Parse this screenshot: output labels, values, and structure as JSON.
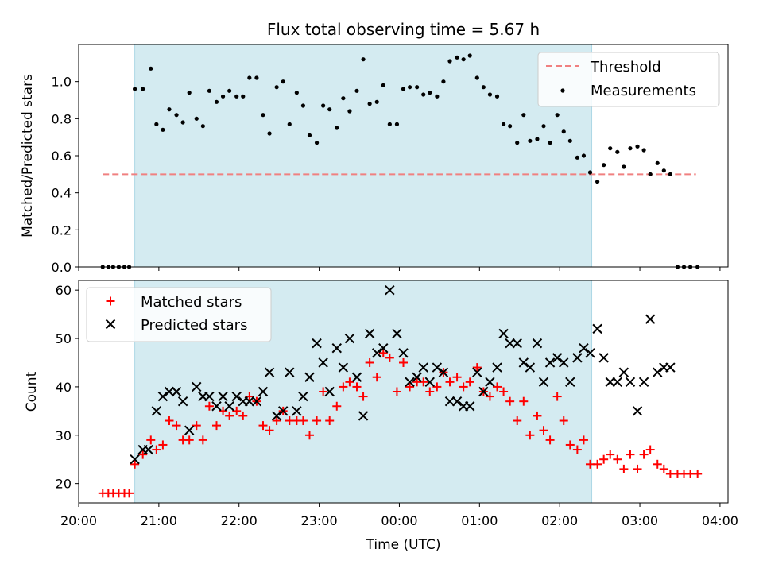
{
  "chart_data": [
    {
      "type": "scatter",
      "title": "Flux total observing time = 5.67 h",
      "xlabel": "",
      "ylabel": "Matched/Predicted stars",
      "xlim_hours": [
        20.0,
        28.1
      ],
      "ylim": [
        0.0,
        1.2
      ],
      "yticks": [
        0.0,
        0.2,
        0.4,
        0.6,
        0.8,
        1.0
      ],
      "yticklabels": [
        "0.0",
        "0.2",
        "0.4",
        "0.6",
        "0.8",
        "1.0"
      ],
      "shaded_region_hours": [
        20.7,
        26.4
      ],
      "shade_color": "#d4ebf1",
      "legend_position": "top-right",
      "threshold": {
        "name": "Threshold",
        "value": 0.5,
        "x_range_hours": [
          20.3,
          27.7
        ],
        "color": "#f08080"
      },
      "series": [
        {
          "name": "Measurements",
          "marker": "dot",
          "color": "#000000",
          "x": [
            20.3,
            20.37,
            20.43,
            20.5,
            20.57,
            20.63,
            20.7,
            20.8,
            20.9,
            20.97,
            21.05,
            21.13,
            21.22,
            21.3,
            21.38,
            21.47,
            21.55,
            21.63,
            21.72,
            21.8,
            21.88,
            21.97,
            22.05,
            22.13,
            22.22,
            22.3,
            22.38,
            22.47,
            22.55,
            22.63,
            22.72,
            22.8,
            22.88,
            22.97,
            23.05,
            23.13,
            23.22,
            23.3,
            23.38,
            23.47,
            23.55,
            23.63,
            23.72,
            23.8,
            23.88,
            23.97,
            24.05,
            24.13,
            24.22,
            24.3,
            24.38,
            24.47,
            24.55,
            24.63,
            24.72,
            24.8,
            24.88,
            24.97,
            25.05,
            25.13,
            25.22,
            25.3,
            25.38,
            25.47,
            25.55,
            25.63,
            25.72,
            25.8,
            25.88,
            25.97,
            26.05,
            26.13,
            26.22,
            26.3,
            26.38,
            26.47,
            26.55,
            26.63,
            26.72,
            26.8,
            26.88,
            26.97,
            27.05,
            27.13,
            27.22,
            27.3,
            27.38,
            27.47,
            27.55,
            27.63,
            27.72
          ],
          "y": [
            0.0,
            0.0,
            0.0,
            0.0,
            0.0,
            0.0,
            0.96,
            0.96,
            1.07,
            0.77,
            0.74,
            0.85,
            0.82,
            0.78,
            0.94,
            0.8,
            0.76,
            0.95,
            0.89,
            0.92,
            0.95,
            0.92,
            0.92,
            1.02,
            1.02,
            0.82,
            0.72,
            0.97,
            1.0,
            0.77,
            0.94,
            0.87,
            0.71,
            0.67,
            0.87,
            0.85,
            0.75,
            0.91,
            0.84,
            0.95,
            1.12,
            0.88,
            0.89,
            0.98,
            0.77,
            0.77,
            0.96,
            0.97,
            0.97,
            0.93,
            0.94,
            0.92,
            1.0,
            1.11,
            1.13,
            1.12,
            1.14,
            1.02,
            0.97,
            0.93,
            0.92,
            0.77,
            0.76,
            0.67,
            0.82,
            0.68,
            0.69,
            0.76,
            0.67,
            0.82,
            0.73,
            0.68,
            0.59,
            0.6,
            0.51,
            0.46,
            0.55,
            0.64,
            0.62,
            0.54,
            0.64,
            0.65,
            0.63,
            0.5,
            0.56,
            0.52,
            0.5,
            0.0,
            0.0,
            0.0,
            0.0
          ]
        }
      ]
    },
    {
      "type": "scatter",
      "title": "",
      "xlabel": "Time (UTC)",
      "ylabel": "Count",
      "xlim_hours": [
        20.0,
        28.1
      ],
      "ylim": [
        16,
        62
      ],
      "yticks": [
        20,
        30,
        40,
        50,
        60
      ],
      "yticklabels": [
        "20",
        "30",
        "40",
        "50",
        "60"
      ],
      "xticks_hours": [
        20,
        21,
        22,
        23,
        24,
        25,
        26,
        27,
        28
      ],
      "xticklabels": [
        "20:00",
        "21:00",
        "22:00",
        "23:00",
        "00:00",
        "01:00",
        "02:00",
        "03:00",
        "04:00"
      ],
      "shaded_region_hours": [
        20.7,
        26.4
      ],
      "shade_color": "#d4ebf1",
      "legend_position": "top-left",
      "series": [
        {
          "name": "Matched stars",
          "marker": "plus",
          "color": "#ff0000",
          "x": [
            20.3,
            20.37,
            20.43,
            20.5,
            20.57,
            20.63,
            20.7,
            20.8,
            20.9,
            20.97,
            21.05,
            21.13,
            21.22,
            21.3,
            21.38,
            21.47,
            21.55,
            21.63,
            21.72,
            21.8,
            21.88,
            21.97,
            22.05,
            22.13,
            22.22,
            22.3,
            22.38,
            22.47,
            22.55,
            22.63,
            22.72,
            22.8,
            22.88,
            22.97,
            23.05,
            23.13,
            23.22,
            23.3,
            23.38,
            23.47,
            23.55,
            23.63,
            23.72,
            23.8,
            23.88,
            23.97,
            24.05,
            24.13,
            24.22,
            24.3,
            24.38,
            24.47,
            24.55,
            24.63,
            24.72,
            24.8,
            24.88,
            24.97,
            25.05,
            25.13,
            25.22,
            25.3,
            25.38,
            25.47,
            25.55,
            25.63,
            25.72,
            25.8,
            25.88,
            25.97,
            26.05,
            26.13,
            26.22,
            26.3,
            26.38,
            26.47,
            26.55,
            26.63,
            26.72,
            26.8,
            26.88,
            26.97,
            27.05,
            27.13,
            27.22,
            27.3,
            27.38,
            27.47,
            27.55,
            27.63,
            27.72
          ],
          "y": [
            18,
            18,
            18,
            18,
            18,
            18,
            24,
            26,
            29,
            27,
            28,
            33,
            32,
            29,
            29,
            32,
            29,
            36,
            32,
            35,
            34,
            35,
            34,
            38,
            37,
            32,
            31,
            33,
            35,
            33,
            33,
            33,
            30,
            33,
            39,
            33,
            36,
            40,
            41,
            40,
            38,
            45,
            42,
            47,
            46,
            39,
            45,
            40,
            41,
            41,
            39,
            40,
            43,
            41,
            42,
            40,
            41,
            44,
            39,
            38,
            40,
            39,
            37,
            33,
            37,
            30,
            34,
            31,
            29,
            38,
            33,
            28,
            27,
            29,
            24,
            24,
            25,
            26,
            25,
            23,
            26,
            23,
            26,
            27,
            24,
            23,
            22,
            22,
            22,
            22,
            22
          ]
        },
        {
          "name": "Predicted stars",
          "marker": "x",
          "color": "#000000",
          "x": [
            20.7,
            20.8,
            20.87,
            20.97,
            21.05,
            21.13,
            21.22,
            21.3,
            21.38,
            21.47,
            21.55,
            21.63,
            21.72,
            21.8,
            21.88,
            21.97,
            22.05,
            22.13,
            22.22,
            22.3,
            22.38,
            22.47,
            22.55,
            22.63,
            22.72,
            22.8,
            22.88,
            22.97,
            23.05,
            23.13,
            23.22,
            23.3,
            23.38,
            23.47,
            23.55,
            23.63,
            23.72,
            23.8,
            23.88,
            23.97,
            24.05,
            24.13,
            24.22,
            24.3,
            24.38,
            24.47,
            24.55,
            24.63,
            24.72,
            24.8,
            24.88,
            24.97,
            25.05,
            25.13,
            25.22,
            25.3,
            25.38,
            25.47,
            25.55,
            25.63,
            25.72,
            25.8,
            25.88,
            25.97,
            26.05,
            26.13,
            26.22,
            26.3,
            26.38,
            26.47,
            26.55,
            26.63,
            26.72,
            26.8,
            26.88,
            26.97,
            27.05,
            27.13,
            27.22,
            27.3,
            27.38
          ],
          "y": [
            25,
            27,
            27,
            35,
            38,
            39,
            39,
            37,
            31,
            40,
            38,
            38,
            36,
            38,
            36,
            38,
            37,
            37,
            37,
            39,
            43,
            34,
            35,
            43,
            35,
            38,
            42,
            49,
            45,
            39,
            48,
            44,
            50,
            42,
            34,
            51,
            47,
            48,
            60,
            51,
            47,
            41,
            42,
            44,
            41,
            44,
            43,
            37,
            37,
            36,
            36,
            43,
            39,
            41,
            44,
            51,
            49,
            49,
            45,
            44,
            49,
            41,
            45,
            46,
            45,
            41,
            46,
            48,
            47,
            52,
            46,
            41,
            41,
            43,
            41,
            35,
            41,
            54,
            43,
            44,
            44
          ]
        }
      ]
    }
  ]
}
